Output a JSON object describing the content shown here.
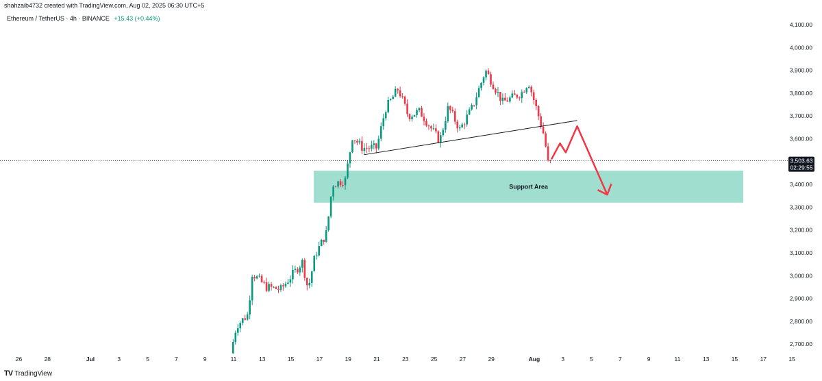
{
  "header": {
    "created_by": "shahzaib4732 created with TradingView.com, Aug 02, 2025 06:30 UTC+5",
    "symbol": "Ethereum / TetherUS · 4h · BINANCE",
    "change": "+15.43 (+0.44%)"
  },
  "branding": {
    "logo_icon": "tradingview-logo-icon",
    "logo": "TV",
    "name": "TradingView"
  },
  "colors": {
    "up": "#089981",
    "down": "#f23645",
    "zone": "#8fd8c8",
    "arrow": "#f23645",
    "axis_text": "#131722"
  },
  "chart_data": {
    "type": "candlestick",
    "price_axis": {
      "min": 2650,
      "max": 4150,
      "ticks": [
        "4,100.00",
        "4,000.00",
        "3,900.00",
        "3,800.00",
        "3,700.00",
        "3,600.00",
        "3,500.00",
        "3,400.00",
        "3,300.00",
        "3,200.00",
        "3,100.00",
        "3,000.00",
        "2,900.00",
        "2,800.00",
        "2,700.00"
      ],
      "tick_values": [
        4100,
        4000,
        3900,
        3800,
        3700,
        3600,
        3500,
        3400,
        3300,
        3200,
        3100,
        3000,
        2900,
        2800,
        2700
      ]
    },
    "time_axis": {
      "labels": [
        "26",
        "28",
        "Jul",
        "3",
        "5",
        "7",
        "9",
        "11",
        "13",
        "15",
        "17",
        "19",
        "21",
        "23",
        "25",
        "27",
        "29",
        "Aug",
        "3",
        "5",
        "7",
        "9",
        "11",
        "13",
        "15",
        "17",
        "15"
      ],
      "day_index": [
        -5,
        -3,
        0,
        2,
        4,
        6,
        8,
        10,
        12,
        14,
        16,
        18,
        20,
        22,
        24,
        26,
        28,
        31,
        33,
        35,
        37,
        39,
        41,
        43,
        45,
        47,
        49
      ]
    },
    "current_price": {
      "price": "3,503.63",
      "countdown": "02:29:55",
      "value": 3503.63
    },
    "support_zone": {
      "label": "Support Area",
      "from_day": 15.6,
      "to_day": 45.6,
      "low": 3320,
      "high": 3460
    },
    "trendline": {
      "start": {
        "day": 19.1,
        "price": 3530
      },
      "end": {
        "day": 34.0,
        "price": 3680
      }
    },
    "projection": [
      {
        "day": 32.2,
        "price": 3510
      },
      {
        "day": 32.8,
        "price": 3580
      },
      {
        "day": 33.2,
        "price": 3540
      },
      {
        "day": 34.0,
        "price": 3655
      },
      {
        "day": 36.1,
        "price": 3355
      }
    ],
    "anchors": [
      {
        "day": 9.8,
        "price": 2660
      },
      {
        "day": 10.2,
        "price": 2780
      },
      {
        "day": 11.0,
        "price": 2830
      },
      {
        "day": 11.3,
        "price": 3010
      },
      {
        "day": 12.3,
        "price": 2950
      },
      {
        "day": 13.3,
        "price": 2940
      },
      {
        "day": 14.8,
        "price": 3060
      },
      {
        "day": 15.2,
        "price": 2940
      },
      {
        "day": 15.7,
        "price": 3090
      },
      {
        "day": 16.5,
        "price": 3190
      },
      {
        "day": 16.9,
        "price": 3400
      },
      {
        "day": 17.8,
        "price": 3420
      },
      {
        "day": 18.3,
        "price": 3610
      },
      {
        "day": 19.0,
        "price": 3560
      },
      {
        "day": 20.0,
        "price": 3560
      },
      {
        "day": 20.6,
        "price": 3730
      },
      {
        "day": 21.5,
        "price": 3820
      },
      {
        "day": 22.2,
        "price": 3700
      },
      {
        "day": 23.0,
        "price": 3720
      },
      {
        "day": 24.4,
        "price": 3590
      },
      {
        "day": 25.0,
        "price": 3740
      },
      {
        "day": 25.8,
        "price": 3640
      },
      {
        "day": 26.7,
        "price": 3740
      },
      {
        "day": 27.6,
        "price": 3900
      },
      {
        "day": 28.2,
        "price": 3830
      },
      {
        "day": 28.8,
        "price": 3760
      },
      {
        "day": 30.1,
        "price": 3800
      },
      {
        "day": 30.6,
        "price": 3850
      },
      {
        "day": 31.3,
        "price": 3700
      },
      {
        "day": 31.7,
        "price": 3610
      },
      {
        "day": 32.0,
        "price": 3480
      },
      {
        "day": 32.2,
        "price": 3500
      }
    ]
  }
}
